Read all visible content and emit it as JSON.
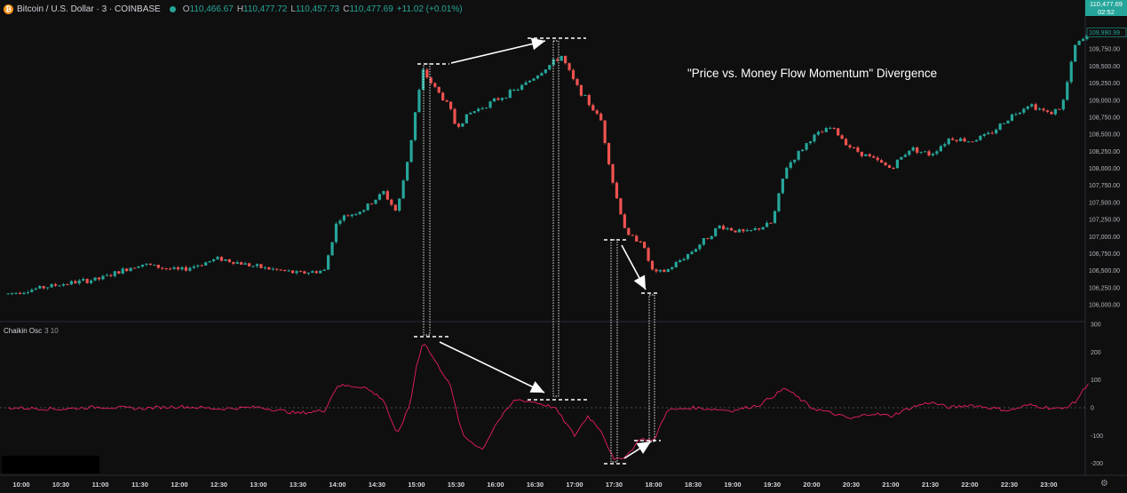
{
  "header": {
    "symbol": "Bitcoin / U.S. Dollar · 3 · COINBASE",
    "ohlc": [
      {
        "k": "O",
        "v": "110,466.67"
      },
      {
        "k": "H",
        "v": "110,477.72"
      },
      {
        "k": "L",
        "v": "110,457.73"
      },
      {
        "k": "C",
        "v": "110,477.69"
      }
    ],
    "change": "+11.02 (+0.01%)"
  },
  "indicator": {
    "name": "Chaikin Osc",
    "params": "3 10"
  },
  "annotation": "\"Price vs. Money Flow Momentum\" Divergence",
  "last_price": {
    "value": "110,477.69",
    "countdown": "02:52"
  },
  "price_axis": [
    "109,990.99",
    "109,750.00",
    "109,500.00",
    "109,250.00",
    "109,000.00",
    "108,750.00",
    "108,500.00",
    "108,250.00",
    "108,000.00",
    "107,750.00",
    "107,500.00",
    "107,250.00",
    "107,000.00",
    "106,750.00",
    "106,500.00",
    "106,250.00",
    "106,000.00"
  ],
  "osc_axis": [
    "300",
    "200",
    "100",
    "0",
    "-100",
    "-200"
  ],
  "time_axis": [
    "10:00",
    "10:30",
    "11:00",
    "11:30",
    "12:00",
    "12:30",
    "13:00",
    "13:30",
    "14:00",
    "14:30",
    "15:00",
    "15:30",
    "16:00",
    "16:30",
    "17:00",
    "17:30",
    "18:00",
    "18:30",
    "19:00",
    "19:30",
    "20:00",
    "20:30",
    "21:00",
    "21:30",
    "22:00",
    "22:30",
    "23:00"
  ],
  "colors": {
    "up": "#26a69a",
    "down": "#ef5350",
    "osc": "#e91e63",
    "bg": "#0f0f0f"
  },
  "chart_data": [
    {
      "type": "candlestick",
      "symbol": "BTC/USD",
      "interval": "3m",
      "ylim": [
        106000,
        110000
      ],
      "x_range": [
        "10:00",
        "23:30"
      ],
      "close_path": [
        [
          "09:50",
          106160
        ],
        [
          "10:30",
          106300
        ],
        [
          "11:00",
          106380
        ],
        [
          "11:30",
          106600
        ],
        [
          "12:00",
          106500
        ],
        [
          "12:30",
          106680
        ],
        [
          "13:00",
          106550
        ],
        [
          "13:30",
          106460
        ],
        [
          "13:50",
          106500
        ],
        [
          "14:00",
          107250
        ],
        [
          "14:20",
          107400
        ],
        [
          "14:35",
          107650
        ],
        [
          "14:45",
          107350
        ],
        [
          "14:55",
          108300
        ],
        [
          "15:00",
          108950
        ],
        [
          "15:05",
          109420
        ],
        [
          "15:15",
          109150
        ],
        [
          "15:25",
          108900
        ],
        [
          "15:30",
          108600
        ],
        [
          "15:40",
          108800
        ],
        [
          "16:00",
          109000
        ],
        [
          "16:20",
          109200
        ],
        [
          "16:40",
          109500
        ],
        [
          "16:50",
          109650
        ],
        [
          "17:00",
          109250
        ],
        [
          "17:20",
          108700
        ],
        [
          "17:30",
          107700
        ],
        [
          "17:40",
          107000
        ],
        [
          "17:50",
          106950
        ],
        [
          "18:00",
          106450
        ],
        [
          "18:10",
          106500
        ],
        [
          "18:30",
          106800
        ],
        [
          "18:50",
          107150
        ],
        [
          "19:10",
          107050
        ],
        [
          "19:30",
          107200
        ],
        [
          "19:40",
          108000
        ],
        [
          "20:00",
          108450
        ],
        [
          "20:15",
          108600
        ],
        [
          "20:30",
          108300
        ],
        [
          "21:00",
          108000
        ],
        [
          "21:15",
          108300
        ],
        [
          "21:30",
          108200
        ],
        [
          "21:45",
          108450
        ],
        [
          "22:00",
          108400
        ],
        [
          "22:15",
          108500
        ],
        [
          "22:30",
          108750
        ],
        [
          "22:45",
          108950
        ],
        [
          "23:00",
          108800
        ],
        [
          "23:10",
          108900
        ],
        [
          "23:20",
          109800
        ],
        [
          "23:30",
          109950
        ]
      ]
    },
    {
      "type": "line",
      "name": "Chaikin Osc",
      "ylim": [
        -200,
        300
      ],
      "values": [
        [
          "09:50",
          0
        ],
        [
          "10:30",
          -5
        ],
        [
          "11:00",
          3
        ],
        [
          "11:30",
          -3
        ],
        [
          "12:00",
          5
        ],
        [
          "12:30",
          -4
        ],
        [
          "13:00",
          2
        ],
        [
          "13:30",
          -20
        ],
        [
          "13:50",
          -10
        ],
        [
          "14:00",
          80
        ],
        [
          "14:20",
          75
        ],
        [
          "14:35",
          30
        ],
        [
          "14:45",
          -100
        ],
        [
          "14:55",
          10
        ],
        [
          "15:00",
          150
        ],
        [
          "15:05",
          240
        ],
        [
          "15:15",
          160
        ],
        [
          "15:25",
          90
        ],
        [
          "15:35",
          -100
        ],
        [
          "15:50",
          -150
        ],
        [
          "16:00",
          -60
        ],
        [
          "16:15",
          30
        ],
        [
          "16:30",
          20
        ],
        [
          "16:45",
          0
        ],
        [
          "17:00",
          -100
        ],
        [
          "17:10",
          -30
        ],
        [
          "17:20",
          -80
        ],
        [
          "17:30",
          -190
        ],
        [
          "17:40",
          -170
        ],
        [
          "17:50",
          -110
        ],
        [
          "18:00",
          -120
        ],
        [
          "18:10",
          -10
        ],
        [
          "18:30",
          0
        ],
        [
          "19:00",
          -10
        ],
        [
          "19:20",
          10
        ],
        [
          "19:40",
          70
        ],
        [
          "20:00",
          0
        ],
        [
          "20:15",
          -20
        ],
        [
          "20:30",
          -40
        ],
        [
          "20:45",
          -20
        ],
        [
          "21:00",
          -30
        ],
        [
          "21:15",
          0
        ],
        [
          "21:30",
          20
        ],
        [
          "21:45",
          0
        ],
        [
          "22:00",
          10
        ],
        [
          "22:15",
          0
        ],
        [
          "22:30",
          -10
        ],
        [
          "22:45",
          10
        ],
        [
          "23:00",
          0
        ],
        [
          "23:10",
          -5
        ],
        [
          "23:20",
          20
        ],
        [
          "23:30",
          90
        ]
      ]
    }
  ]
}
